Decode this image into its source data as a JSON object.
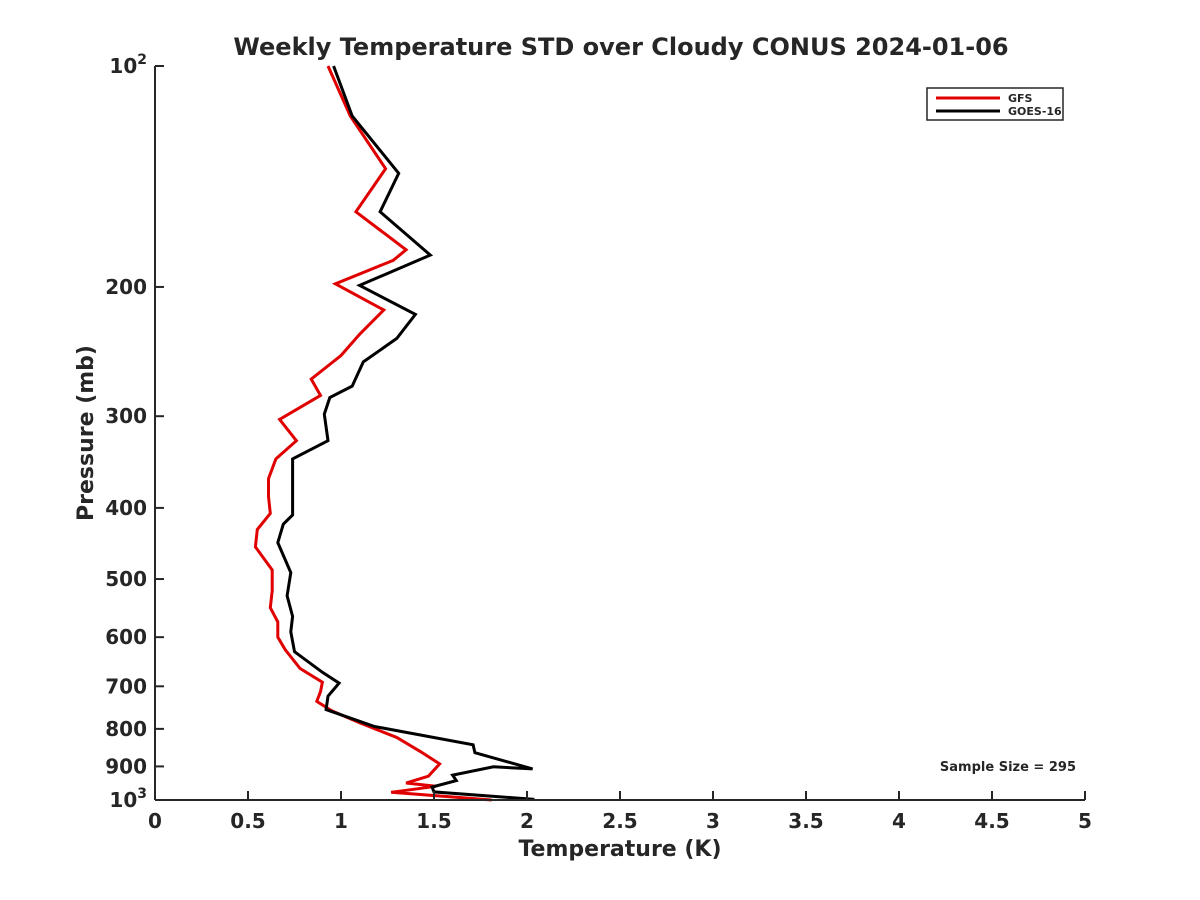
{
  "chart_data": {
    "type": "line",
    "title": "Weekly Temperature STD over Cloudy CONUS 2024-01-06",
    "xlabel": "Temperature (K)",
    "ylabel": "Pressure (mb)",
    "xlim": [
      0,
      5
    ],
    "ylim": [
      100,
      1000
    ],
    "yscale": "log",
    "y_reversed": true,
    "x_ticks": [
      "0",
      "0.5",
      "1",
      "1.5",
      "2",
      "2.5",
      "3",
      "3.5",
      "4",
      "4.5",
      "5"
    ],
    "y_ticks": [
      {
        "value": 100,
        "base": "10",
        "exp": "2"
      },
      {
        "value": 200,
        "label": "200"
      },
      {
        "value": 300,
        "label": "300"
      },
      {
        "value": 400,
        "label": "400"
      },
      {
        "value": 500,
        "label": "500"
      },
      {
        "value": 600,
        "label": "600"
      },
      {
        "value": 700,
        "label": "700"
      },
      {
        "value": 800,
        "label": "800"
      },
      {
        "value": 900,
        "label": "900"
      },
      {
        "value": 1000,
        "base": "10",
        "exp": "3"
      }
    ],
    "grid": false,
    "legend_position": "top-right",
    "annotation": "Sample Size = 295",
    "series": [
      {
        "name": "GFS",
        "color": "#e00000",
        "points": [
          [
            0.93,
            100
          ],
          [
            1.05,
            117
          ],
          [
            1.24,
            138
          ],
          [
            1.08,
            158
          ],
          [
            1.35,
            178
          ],
          [
            1.28,
            184
          ],
          [
            0.97,
            198
          ],
          [
            1.23,
            215
          ],
          [
            1.1,
            232
          ],
          [
            1.0,
            248
          ],
          [
            0.84,
            267
          ],
          [
            0.89,
            281
          ],
          [
            0.67,
            303
          ],
          [
            0.76,
            324
          ],
          [
            0.65,
            343
          ],
          [
            0.61,
            365
          ],
          [
            0.61,
            386
          ],
          [
            0.62,
            407
          ],
          [
            0.55,
            428
          ],
          [
            0.54,
            452
          ],
          [
            0.63,
            486
          ],
          [
            0.63,
            519
          ],
          [
            0.62,
            547
          ],
          [
            0.66,
            572
          ],
          [
            0.66,
            600
          ],
          [
            0.7,
            624
          ],
          [
            0.78,
            662
          ],
          [
            0.9,
            691
          ],
          [
            0.89,
            712
          ],
          [
            0.87,
            734
          ],
          [
            0.95,
            756
          ],
          [
            1.1,
            785
          ],
          [
            1.3,
            822
          ],
          [
            1.43,
            860
          ],
          [
            1.53,
            893
          ],
          [
            1.47,
            928
          ],
          [
            1.35,
            948
          ],
          [
            1.51,
            958
          ],
          [
            1.27,
            976
          ],
          [
            1.81,
            1000
          ]
        ]
      },
      {
        "name": "GOES-16",
        "color": "#000000",
        "points": [
          [
            0.96,
            100
          ],
          [
            1.06,
            117
          ],
          [
            1.31,
            140
          ],
          [
            1.21,
            158
          ],
          [
            1.48,
            181
          ],
          [
            1.1,
            199
          ],
          [
            1.4,
            218
          ],
          [
            1.3,
            235
          ],
          [
            1.12,
            253
          ],
          [
            1.06,
            273
          ],
          [
            0.94,
            283
          ],
          [
            0.91,
            298
          ],
          [
            0.93,
            324
          ],
          [
            0.74,
            343
          ],
          [
            0.74,
            367
          ],
          [
            0.74,
            396
          ],
          [
            0.74,
            409
          ],
          [
            0.69,
            421
          ],
          [
            0.66,
            446
          ],
          [
            0.73,
            490
          ],
          [
            0.71,
            527
          ],
          [
            0.74,
            562
          ],
          [
            0.73,
            590
          ],
          [
            0.75,
            628
          ],
          [
            0.9,
            670
          ],
          [
            0.99,
            693
          ],
          [
            0.93,
            722
          ],
          [
            0.92,
            753
          ],
          [
            1.18,
            794
          ],
          [
            1.71,
            841
          ],
          [
            1.72,
            862
          ],
          [
            2.03,
            907
          ],
          [
            1.82,
            901
          ],
          [
            1.6,
            925
          ],
          [
            1.62,
            941
          ],
          [
            1.49,
            960
          ],
          [
            1.5,
            975
          ],
          [
            2.04,
            998
          ]
        ]
      }
    ]
  }
}
